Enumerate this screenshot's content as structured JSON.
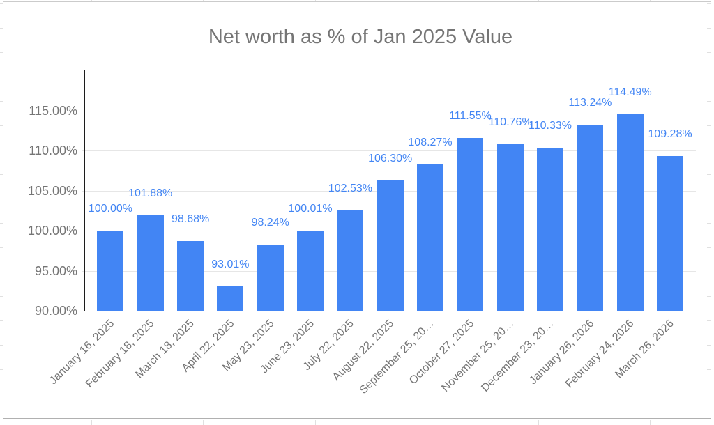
{
  "chart_data": {
    "type": "bar",
    "title": "Net worth as % of Jan 2025 Value",
    "categories": [
      "January 16, 2025",
      "February 18, 2025",
      "March 18, 2025",
      "April 22, 2025",
      "May 23, 2025",
      "June 23, 2025",
      "July 22, 2025",
      "August 22, 2025",
      "September 25, 20…",
      "October 27, 2025",
      "November 25, 20…",
      "December 23, 20…",
      "January 26, 2026",
      "February 24, 2026",
      "March 26, 2026"
    ],
    "values": [
      100.0,
      101.88,
      98.68,
      93.01,
      98.24,
      100.01,
      102.53,
      106.3,
      108.27,
      111.55,
      110.76,
      110.33,
      113.24,
      114.49,
      109.28
    ],
    "value_labels": [
      "100.00%",
      "101.88%",
      "98.68%",
      "93.01%",
      "98.24%",
      "100.01%",
      "102.53%",
      "106.30%",
      "108.27%",
      "111.55%",
      "110.76%",
      "110.33%",
      "113.24%",
      "114.49%",
      "109.28%"
    ],
    "xlabel": "",
    "ylabel": "",
    "y_axis": {
      "min": 90,
      "max": 120,
      "ticks": [
        115,
        110,
        105,
        100,
        95,
        90
      ],
      "tick_labels": [
        "115.00%",
        "110.00%",
        "105.00%",
        "100.00%",
        "95.00%",
        "90.00%"
      ]
    },
    "ylim": [
      90,
      120
    ],
    "grid": true,
    "legend_position": "none",
    "colors": {
      "bar": "#4285f4",
      "value_label": "#4285f4",
      "axis_text": "#757575",
      "title_text": "#757575",
      "gridline": "#e6e6e6",
      "baseline": "#d4d4d4",
      "axis_line": "#1c1c1c",
      "sheet_line": "#e0e0e0"
    }
  }
}
